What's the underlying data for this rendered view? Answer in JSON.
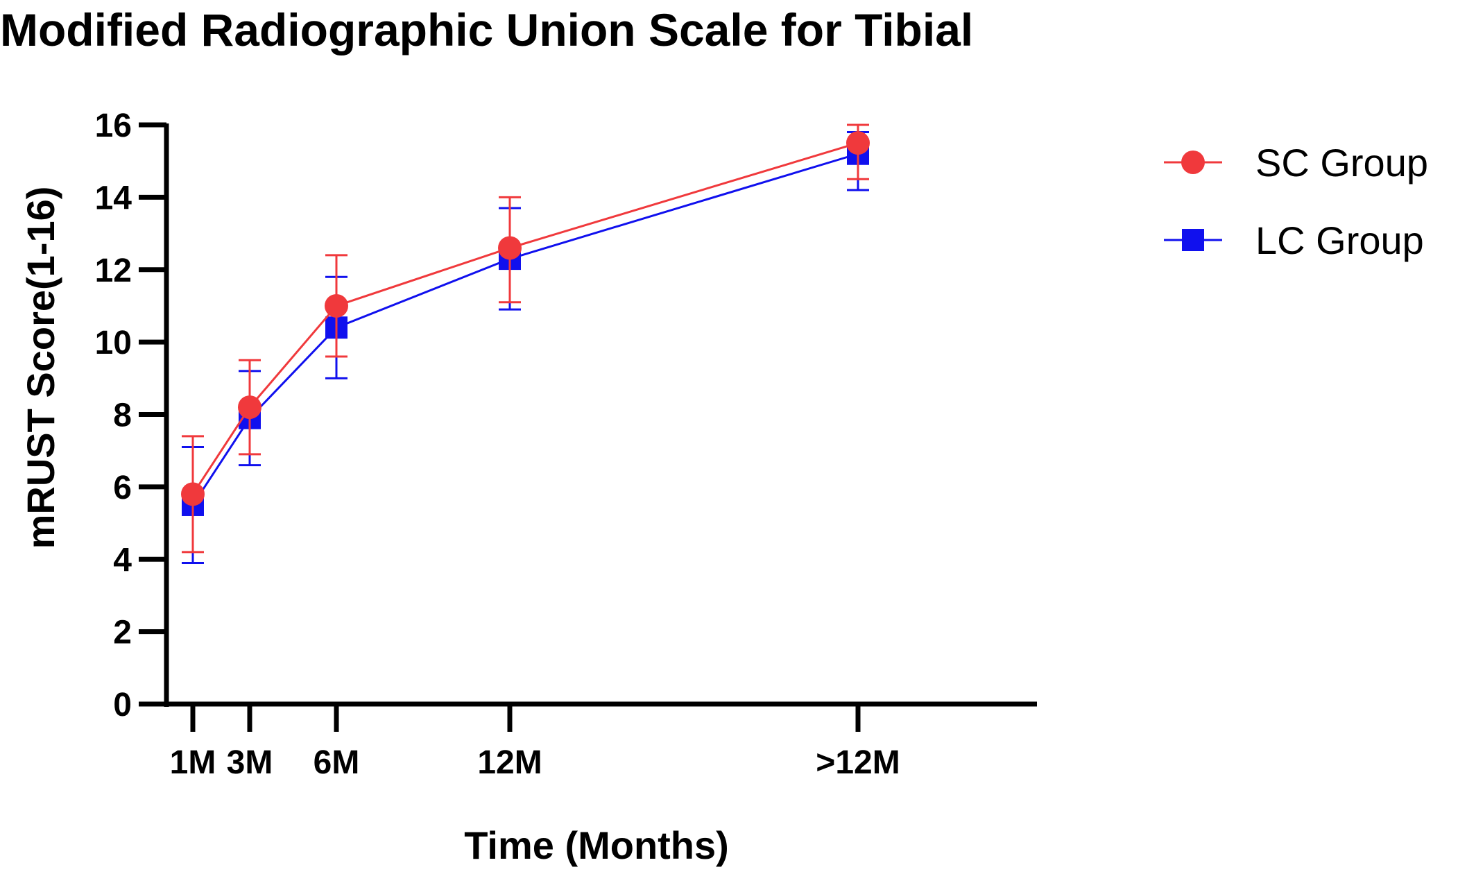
{
  "chart_data": {
    "type": "line",
    "title": "Modified Radiographic Union Scale for Tibial",
    "xlabel": "Time (Months)",
    "ylabel": "mRUST Score(1-16)",
    "categories": [
      "1M",
      "3M",
      "6M",
      "12M",
      ">12M"
    ],
    "x": [
      1,
      3,
      6,
      12,
      24
    ],
    "yticks": [
      "0",
      "2",
      "4",
      "6",
      "8",
      "10",
      "12",
      "14",
      "16"
    ],
    "ylim": [
      0,
      16
    ],
    "grid": false,
    "legend_position": "top-right",
    "series": [
      {
        "name": "SC Group",
        "color": "#f0393c",
        "marker": "circle",
        "values": [
          5.8,
          8.2,
          11.0,
          12.6,
          15.5
        ],
        "error_upper": [
          7.4,
          9.5,
          12.4,
          14.0,
          16.0
        ],
        "error_lower": [
          4.2,
          6.9,
          9.6,
          11.1,
          14.5
        ]
      },
      {
        "name": "LC Group",
        "color": "#1010ee",
        "marker": "square",
        "values": [
          5.5,
          7.9,
          10.4,
          12.3,
          15.2
        ],
        "error_upper": [
          7.1,
          9.2,
          11.8,
          13.7,
          15.8
        ],
        "error_lower": [
          3.9,
          6.6,
          9.0,
          10.9,
          14.2
        ]
      }
    ]
  }
}
